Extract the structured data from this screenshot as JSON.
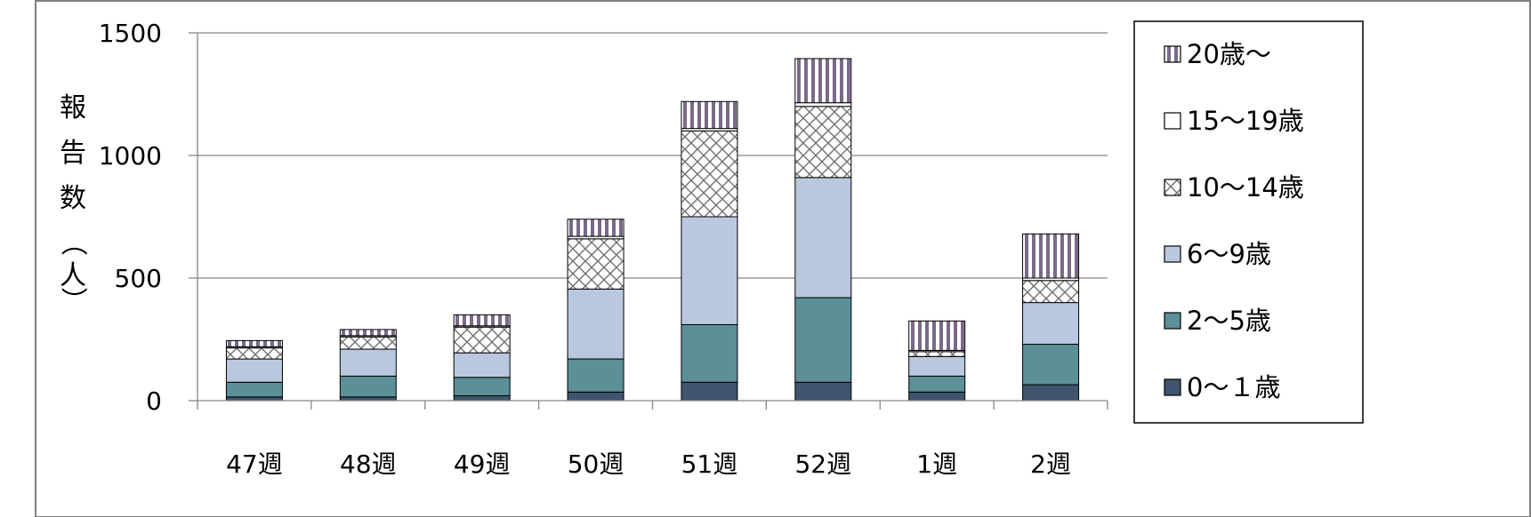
{
  "chart_data": {
    "type": "bar",
    "stacked": true,
    "categories": [
      "47週",
      "48週",
      "49週",
      "50週",
      "51週",
      "52週",
      "1週",
      "2週"
    ],
    "series": [
      {
        "name": "0～１歳",
        "values": [
          15,
          15,
          20,
          35,
          75,
          75,
          35,
          65
        ],
        "color": "#3f556e",
        "pattern": "solid"
      },
      {
        "name": "2～5歳",
        "values": [
          60,
          85,
          75,
          135,
          235,
          345,
          65,
          165
        ],
        "color": "#5c8f98",
        "pattern": "solid"
      },
      {
        "name": "6～9歳",
        "values": [
          95,
          110,
          100,
          285,
          440,
          490,
          80,
          170
        ],
        "color": "#bac8df",
        "pattern": "solid"
      },
      {
        "name": "10～14歳",
        "values": [
          45,
          50,
          105,
          205,
          350,
          290,
          20,
          90
        ],
        "color": "#ffffff",
        "pattern": "crosshatch"
      },
      {
        "name": "15～19歳",
        "values": [
          5,
          5,
          5,
          10,
          10,
          15,
          5,
          10
        ],
        "color": "#ffffff",
        "pattern": "solid"
      },
      {
        "name": "20歳～",
        "values": [
          25,
          25,
          45,
          70,
          110,
          180,
          120,
          180
        ],
        "color": "#8a7a96",
        "pattern": "vertical-stripes"
      }
    ],
    "ylabel": "報告数（人）",
    "xlabel": "",
    "ylim": [
      0,
      1500
    ],
    "yticks": [
      0,
      500,
      1000,
      1500
    ],
    "grid": true,
    "legend_position": "right",
    "legend_order": [
      "20歳～",
      "15～19歳",
      "10～14歳",
      "6～9歳",
      "2～5歳",
      "0～１歳"
    ]
  }
}
